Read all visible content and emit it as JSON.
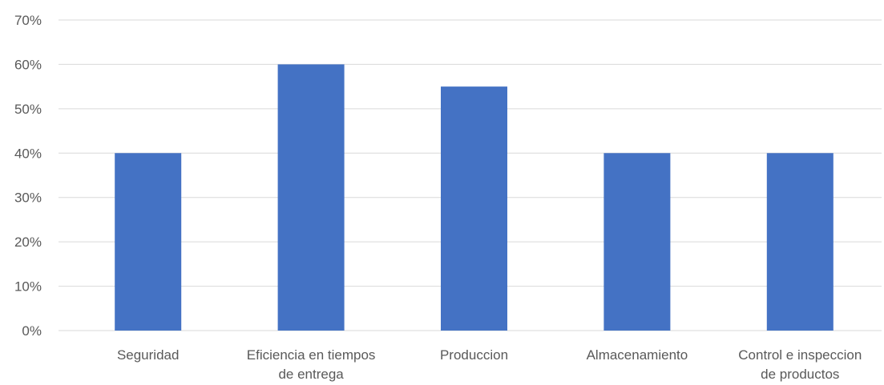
{
  "chart_data": {
    "type": "bar",
    "categories": [
      [
        "Seguridad"
      ],
      [
        "Eficiencia en tiempos",
        "de entrega"
      ],
      [
        "Produccion"
      ],
      [
        "Almacenamiento"
      ],
      [
        "Control e inspeccion",
        "de productos"
      ]
    ],
    "values": [
      0.4,
      0.6,
      0.55,
      0.4,
      0.4
    ],
    "ylim": [
      0,
      0.7
    ],
    "yticks": [
      0,
      0.1,
      0.2,
      0.3,
      0.4,
      0.5,
      0.6,
      0.7
    ],
    "ytick_labels": [
      "0%",
      "10%",
      "20%",
      "30%",
      "40%",
      "50%",
      "60%",
      "70%"
    ],
    "grid": true,
    "legend": false,
    "colors": {
      "bar": "#4472C4",
      "grid": "#D9D9D9",
      "text": "#595959"
    }
  }
}
